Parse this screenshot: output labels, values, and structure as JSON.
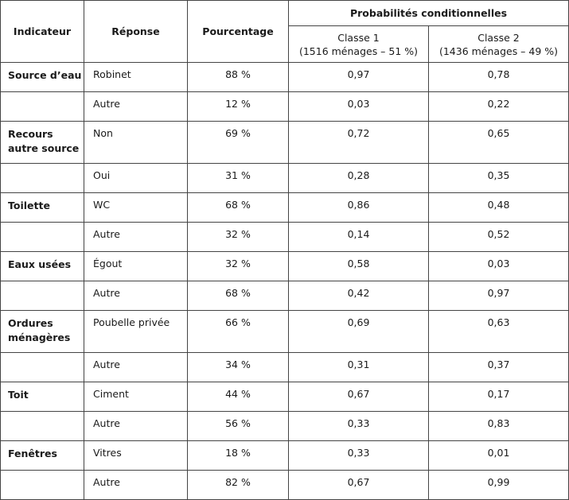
{
  "headers": {
    "indicator": "Indicateur",
    "response": "Réponse",
    "percentage": "Pourcentage",
    "conditional_probabilities": "Probabilités conditionnelles",
    "class1_line1": "Classe 1",
    "class1_line2": "(1516 ménages – 51 %)",
    "class2_line1": "Classe 2",
    "class2_line2": "(1436 ménages – 49 %)"
  },
  "rows": [
    {
      "indicator": "Source d’eau",
      "response": "Robinet",
      "pct": "88 %",
      "c1": "0,97",
      "c2": "0,78"
    },
    {
      "indicator": "",
      "response": "Autre",
      "pct": "12 %",
      "c1": "0,03",
      "c2": "0,22"
    },
    {
      "indicator": "Recours autre source",
      "response": "Non",
      "pct": "69 %",
      "c1": "0,72",
      "c2": "0,65"
    },
    {
      "indicator": "",
      "response": "Oui",
      "pct": "31 %",
      "c1": "0,28",
      "c2": "0,35"
    },
    {
      "indicator": "Toilette",
      "response": "WC",
      "pct": "68 %",
      "c1": "0,86",
      "c2": "0,48"
    },
    {
      "indicator": "",
      "response": "Autre",
      "pct": "32 %",
      "c1": "0,14",
      "c2": "0,52"
    },
    {
      "indicator": "Eaux usées",
      "response": "Égout",
      "pct": "32 %",
      "c1": "0,58",
      "c2": "0,03"
    },
    {
      "indicator": "",
      "response": "Autre",
      "pct": "68 %",
      "c1": "0,42",
      "c2": "0,97"
    },
    {
      "indicator": "Ordures ménagères",
      "response": "Poubelle privée",
      "pct": "66 %",
      "c1": "0,69",
      "c2": "0,63"
    },
    {
      "indicator": "",
      "response": "Autre",
      "pct": "34 %",
      "c1": "0,31",
      "c2": "0,37"
    },
    {
      "indicator": "Toit",
      "response": "Ciment",
      "pct": "44 %",
      "c1": "0,67",
      "c2": "0,17"
    },
    {
      "indicator": "",
      "response": "Autre",
      "pct": "56 %",
      "c1": "0,33",
      "c2": "0,83"
    },
    {
      "indicator": "Fenêtres",
      "response": "Vitres",
      "pct": "18 %",
      "c1": "0,33",
      "c2": "0,01"
    },
    {
      "indicator": "",
      "response": "Autre",
      "pct": "82 %",
      "c1": "0,67",
      "c2": "0,99"
    }
  ]
}
